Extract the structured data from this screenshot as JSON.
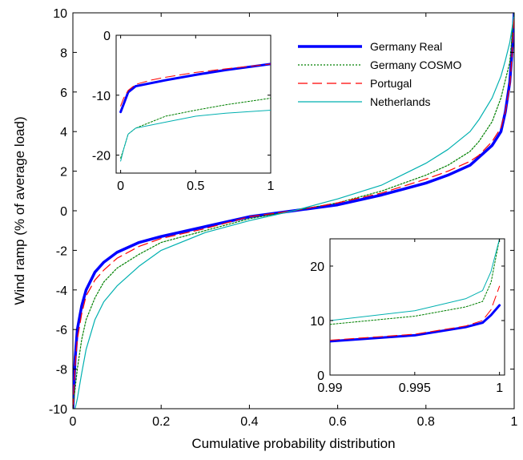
{
  "chart_data": [
    {
      "id": "main",
      "type": "line",
      "title": "",
      "xlabel": "Cumulative probability distribution",
      "ylabel": "Wind ramp (% of average load)",
      "xlim": [
        0,
        1
      ],
      "ylim": [
        -10,
        10
      ],
      "xticks": [
        0,
        0.2,
        0.4,
        0.6,
        0.8,
        1
      ],
      "xtick_labels": [
        "0",
        "0.2",
        "0.4",
        "0.6",
        "0.8",
        "1"
      ],
      "yticks": [
        -10,
        -8,
        -6,
        -4,
        -2,
        0,
        2,
        4,
        6,
        8,
        10
      ],
      "ytick_labels": [
        "-10",
        "-8",
        "-6",
        "-4",
        "-2",
        "0",
        "2",
        "4",
        "6",
        "8",
        "10"
      ],
      "grid": false,
      "legend": {
        "placement": "top-right",
        "entries": [
          "Germany Real",
          "Germany COSMO",
          "Portugal",
          "Netherlands"
        ]
      },
      "series": [
        {
          "name": "Germany Real",
          "color": "#0000ff",
          "style": "solid-thick",
          "x": [
            0.0,
            0.005,
            0.01,
            0.02,
            0.03,
            0.05,
            0.07,
            0.1,
            0.15,
            0.2,
            0.3,
            0.4,
            0.5,
            0.6,
            0.7,
            0.8,
            0.85,
            0.9,
            0.92,
            0.95,
            0.97,
            0.98,
            0.99,
            0.995,
            1.0
          ],
          "y": [
            -10,
            -7.5,
            -6.0,
            -4.8,
            -4.0,
            -3.1,
            -2.6,
            -2.1,
            -1.6,
            -1.3,
            -0.8,
            -0.3,
            0.0,
            0.3,
            0.8,
            1.4,
            1.8,
            2.3,
            2.7,
            3.3,
            4.0,
            5.0,
            6.5,
            8.0,
            10
          ]
        },
        {
          "name": "Germany COSMO",
          "color": "#008000",
          "style": "dotted",
          "x": [
            0.0,
            0.005,
            0.01,
            0.02,
            0.03,
            0.05,
            0.07,
            0.1,
            0.15,
            0.2,
            0.3,
            0.4,
            0.5,
            0.6,
            0.7,
            0.8,
            0.85,
            0.9,
            0.92,
            0.95,
            0.97,
            0.98,
            0.99,
            0.995,
            1.0
          ],
          "y": [
            -10,
            -9.0,
            -8.0,
            -6.5,
            -5.5,
            -4.4,
            -3.6,
            -2.9,
            -2.2,
            -1.6,
            -1.0,
            -0.4,
            0.0,
            0.4,
            1.0,
            1.8,
            2.3,
            3.0,
            3.5,
            4.5,
            5.7,
            6.6,
            7.5,
            8.8,
            10
          ]
        },
        {
          "name": "Portugal",
          "color": "#ff0000",
          "style": "dashed",
          "x": [
            0.0,
            0.005,
            0.01,
            0.02,
            0.03,
            0.05,
            0.07,
            0.1,
            0.15,
            0.2,
            0.3,
            0.4,
            0.5,
            0.6,
            0.7,
            0.8,
            0.85,
            0.9,
            0.92,
            0.95,
            0.97,
            0.98,
            0.99,
            0.995,
            1.0
          ],
          "y": [
            -10,
            -7.8,
            -6.5,
            -5.2,
            -4.3,
            -3.5,
            -3.0,
            -2.4,
            -1.8,
            -1.4,
            -0.9,
            -0.3,
            0.0,
            0.4,
            0.9,
            1.6,
            2.0,
            2.5,
            2.8,
            3.5,
            4.2,
            5.0,
            6.3,
            7.8,
            10
          ]
        },
        {
          "name": "Netherlands",
          "color": "#00b0b0",
          "style": "solid-thin",
          "x": [
            0.0,
            0.005,
            0.01,
            0.02,
            0.03,
            0.05,
            0.07,
            0.1,
            0.15,
            0.2,
            0.3,
            0.4,
            0.5,
            0.6,
            0.7,
            0.8,
            0.85,
            0.9,
            0.92,
            0.95,
            0.97,
            0.98,
            0.99,
            0.995,
            1.0
          ],
          "y": [
            -10,
            -10,
            -9.5,
            -8.2,
            -7.0,
            -5.5,
            -4.6,
            -3.8,
            -2.8,
            -2.0,
            -1.1,
            -0.5,
            0.0,
            0.6,
            1.3,
            2.4,
            3.1,
            4.0,
            4.6,
            5.7,
            6.8,
            7.6,
            8.5,
            9.2,
            10
          ]
        }
      ]
    },
    {
      "id": "inset-left",
      "type": "line",
      "xlim": [
        -0.03,
        1
      ],
      "ylim": [
        -23,
        0
      ],
      "xticks": [
        0,
        0.5,
        1
      ],
      "xtick_labels": [
        "0",
        "0.5",
        "1"
      ],
      "yticks": [
        0,
        -10,
        -20
      ],
      "ytick_labels": [
        "0",
        "-10",
        "-20"
      ],
      "grid": false,
      "series": [
        {
          "name": "Germany Real",
          "x": [
            0.0,
            0.02,
            0.05,
            0.1,
            0.2,
            0.3,
            0.5,
            0.7,
            1.0
          ],
          "y": [
            -12.8,
            -11.5,
            -9.5,
            -8.5,
            -8.0,
            -7.5,
            -6.6,
            -5.8,
            -4.8
          ]
        },
        {
          "name": "Germany COSMO",
          "x": [
            0.0,
            0.02,
            0.05,
            0.1,
            0.2,
            0.3,
            0.5,
            0.7,
            1.0
          ],
          "y": [
            -20.5,
            -19.0,
            -16.5,
            -15.5,
            -14.5,
            -13.5,
            -12.5,
            -11.6,
            -10.5
          ]
        },
        {
          "name": "Portugal",
          "x": [
            0.0,
            0.02,
            0.05,
            0.1,
            0.2,
            0.3,
            0.5,
            0.7,
            1.0
          ],
          "y": [
            -11.8,
            -10.5,
            -9.2,
            -8.2,
            -7.5,
            -7.0,
            -6.2,
            -5.6,
            -4.8
          ]
        },
        {
          "name": "Netherlands",
          "x": [
            0.0,
            0.02,
            0.05,
            0.1,
            0.2,
            0.3,
            0.5,
            0.7,
            1.0
          ],
          "y": [
            -21.0,
            -19.0,
            -16.5,
            -15.5,
            -15.0,
            -14.5,
            -13.5,
            -13.0,
            -12.5
          ]
        }
      ]
    },
    {
      "id": "inset-right",
      "type": "line",
      "xlim": [
        0.99,
        1.0003
      ],
      "ylim": [
        0,
        25
      ],
      "xticks": [
        0.99,
        0.995,
        1
      ],
      "xtick_labels": [
        "0.99",
        "0.995",
        "1"
      ],
      "yticks": [
        0,
        10,
        20
      ],
      "ytick_labels": [
        "0",
        "10",
        "20"
      ],
      "grid": false,
      "series": [
        {
          "name": "Germany Real",
          "x": [
            0.99,
            0.995,
            0.998,
            0.999,
            0.9995,
            1.0
          ],
          "y": [
            6.2,
            7.3,
            8.8,
            9.6,
            11.0,
            12.8
          ]
        },
        {
          "name": "Germany COSMO",
          "x": [
            0.99,
            0.995,
            0.998,
            0.999,
            0.9995,
            1.0
          ],
          "y": [
            9.3,
            10.8,
            12.5,
            13.5,
            17.0,
            25.0
          ]
        },
        {
          "name": "Portugal",
          "x": [
            0.99,
            0.995,
            0.998,
            0.999,
            0.9995,
            1.0
          ],
          "y": [
            6.4,
            7.5,
            9.0,
            10.0,
            12.0,
            16.3
          ]
        },
        {
          "name": "Netherlands",
          "x": [
            0.99,
            0.995,
            0.998,
            0.999,
            0.9995,
            1.0
          ],
          "y": [
            10.0,
            11.8,
            14.0,
            15.5,
            19.0,
            25.0
          ]
        }
      ]
    }
  ]
}
